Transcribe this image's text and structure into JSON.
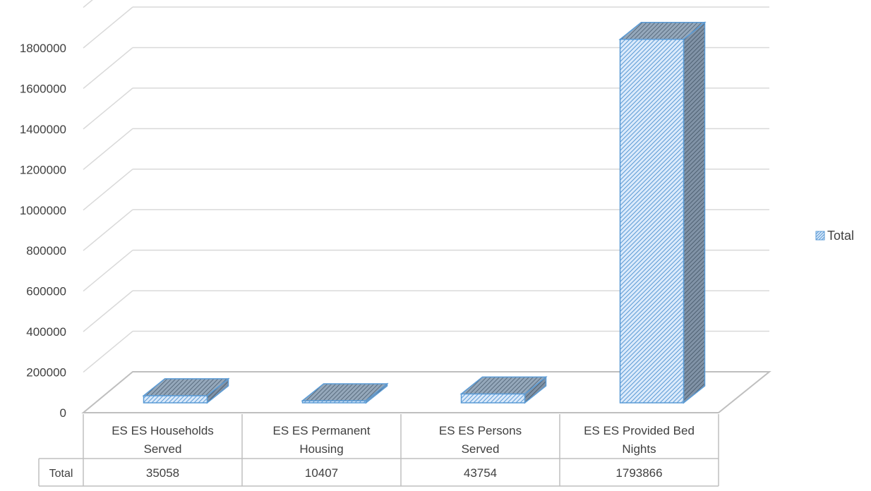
{
  "chart_data": {
    "type": "bar",
    "style": "3d-column-with-data-table",
    "categories": [
      [
        "ES ES Households",
        "Served"
      ],
      [
        "ES ES Permanent",
        "Housing"
      ],
      [
        "ES ES Persons",
        "Served"
      ],
      [
        "ES ES Provided Bed",
        "Nights"
      ]
    ],
    "series": [
      {
        "name": "Total",
        "values": [
          35058,
          10407,
          43754,
          1793866
        ]
      }
    ],
    "ylim": [
      0,
      1800000
    ],
    "y_ticks": [
      0,
      200000,
      400000,
      600000,
      800000,
      1000000,
      1200000,
      1400000,
      1600000,
      1800000
    ],
    "grid": true,
    "legend": {
      "position": "right",
      "label": "Total"
    },
    "data_table": {
      "row_label": "Total"
    },
    "colors": {
      "bar_fill": "#dbeafb",
      "bar_hatch": "#5b9bd5",
      "bar_edge": "#5b9bd5",
      "bar_side": "#7f96ad",
      "bar_top": "#8fa2b6",
      "grid": "#d9d9d9",
      "floor_edge": "#bfbfbf",
      "text": "#404040"
    }
  }
}
